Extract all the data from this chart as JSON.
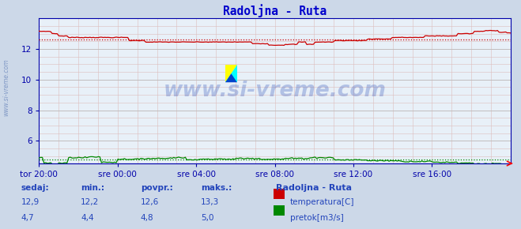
{
  "title": "Radoljna - Ruta",
  "bg_color": "#ccd8e8",
  "plot_bg_color": "#e8f0f8",
  "title_color": "#0000cc",
  "tick_color": "#0000aa",
  "ylim": [
    4.5,
    14.0
  ],
  "yticks": [
    6,
    8,
    10,
    12
  ],
  "xlabel_ticks": [
    "tor 20:00",
    "sre 00:00",
    "sre 04:00",
    "sre 08:00",
    "sre 12:00",
    "sre 16:00"
  ],
  "n_points": 288,
  "temp_avg": 12.6,
  "flow_avg": 4.8,
  "temp_color": "#cc0000",
  "flow_color": "#008800",
  "blue_line_y": 4.52,
  "watermark_text": "www.si-vreme.com",
  "watermark_color": "#3355bb",
  "watermark_alpha": 0.3,
  "sidebar_color": "#4466aa",
  "sidebar_alpha": 0.55,
  "legend_title": "Radoljna - Ruta",
  "legend_label1": "temperatura[C]",
  "legend_label2": "pretok[m3/s]",
  "legend_color1": "#cc0000",
  "legend_color2": "#008800",
  "stats_labels": [
    "sedaj:",
    "min.:",
    "povpr.:",
    "maks.:"
  ],
  "stats_temp": [
    "12,9",
    "12,2",
    "12,6",
    "13,3"
  ],
  "stats_flow": [
    "4,7",
    "4,4",
    "4,8",
    "5,0"
  ],
  "label_color": "#2244bb",
  "value_color": "#2244bb"
}
